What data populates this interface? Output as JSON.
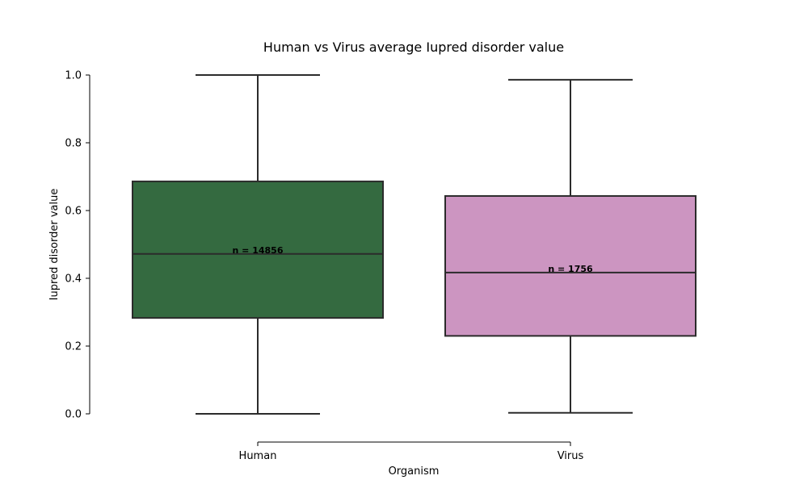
{
  "chart_data": {
    "type": "box",
    "title": "Human vs Virus average Iupred disorder value",
    "xlabel": "Organism",
    "ylabel": "Iupred disorder value",
    "ylim": [
      0.0,
      1.0
    ],
    "yticks": [
      "0.0",
      "0.2",
      "0.4",
      "0.6",
      "0.8",
      "1.0"
    ],
    "grid": false,
    "categories": [
      "Human",
      "Virus"
    ],
    "boxes": [
      {
        "name": "Human",
        "min": 0.0,
        "q1": 0.283,
        "median": 0.472,
        "q3": 0.686,
        "max": 1.0,
        "n_label": "n = 14856",
        "color": "#346a40"
      },
      {
        "name": "Virus",
        "min": 0.003,
        "q1": 0.23,
        "median": 0.417,
        "q3": 0.643,
        "max": 0.986,
        "n_label": "n = 1756",
        "color": "#cc95c1"
      }
    ],
    "colors": {
      "box_edge": "#2b2b2b",
      "axis": "#000000"
    }
  }
}
